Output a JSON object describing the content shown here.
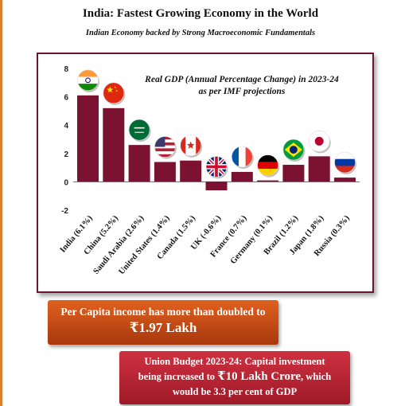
{
  "page": {
    "title": "India: Fastest Growing Economy in the World",
    "subtitle": "Indian Economy backed by Strong Macroeconomic Fundamentals"
  },
  "chart_data": {
    "type": "bar",
    "title_line1": "Real GDP (Annual Percentage Change) in 2023-24",
    "title_line2": "as per IMF projections",
    "categories": [
      "India (6.1%)",
      "China (5.2%)",
      "Saudi Arabia (2.6%)",
      "United States (1.4%)",
      "Canada (1.5%)",
      "UK (-0.6%)",
      "France (0.7%)",
      "Germany (0.1%)",
      "Brazil (1.2%)",
      "Japan (1.8%)",
      "Russia (0.3%)"
    ],
    "values": [
      6.1,
      5.2,
      2.6,
      1.4,
      1.5,
      -0.6,
      0.7,
      0.1,
      1.2,
      1.8,
      0.3
    ],
    "flags": [
      "india-flag",
      "china-flag",
      "saudi-arabia-flag",
      "united-states-flag",
      "canada-flag",
      "uk-flag",
      "france-flag",
      "germany-flag",
      "brazil-flag",
      "japan-flag",
      "russia-flag"
    ],
    "yticks": [
      "8",
      "6",
      "4",
      "2",
      "0",
      "-2"
    ],
    "ylim": [
      -2,
      8
    ],
    "bar_color": "#7b1232",
    "grid": false,
    "legend": "none"
  },
  "banners": {
    "per_capita_line1": "Per Capita income has more than doubled to",
    "per_capita_line2": "₹1.97 Lakh",
    "budget_line1": "Union Budget 2023-24: Capital investment",
    "budget_line2_pre": "being increased to ",
    "budget_line2_amt": "₹10 Lakh Crore",
    "budget_line2_post": ", which",
    "budget_line3": "would be 3.3 per cent of GDP"
  },
  "colors": {
    "accent_orange": "#e0611f",
    "accent_red": "#cf3040",
    "frame": "#6b1530"
  }
}
